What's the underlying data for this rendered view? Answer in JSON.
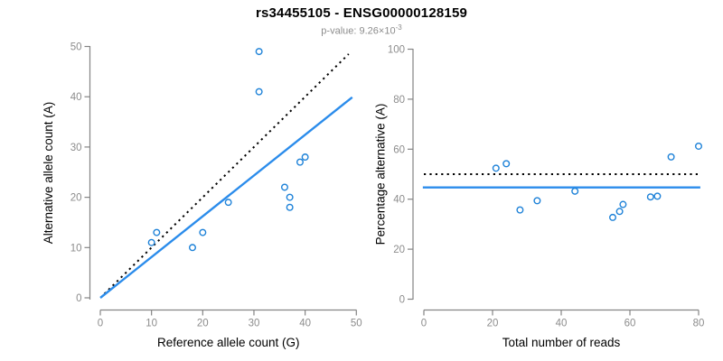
{
  "title": "rs34455105 - ENSG00000128159",
  "subtitle": {
    "label": "p-value:",
    "mantissa": "9.26×10",
    "exponent": "-3",
    "full_text": "p-value: 9.26×10^-3"
  },
  "colors": {
    "point": "#1e82d8",
    "fit_line": "#2b8ceb",
    "dotted_line": "#000000",
    "axis": "#848484",
    "tick_label": "#8c8c8c",
    "axis_title": "#000000",
    "subtitle_gray": "#8c8c8c"
  },
  "chart_data": [
    {
      "type": "scatter",
      "name": "ref-vs-alt-counts",
      "xlabel": "Reference allele count (G)",
      "ylabel": "Alternative allele count (A)",
      "xlim": [
        0,
        50
      ],
      "ylim": [
        0,
        50
      ],
      "xticks": [
        0,
        10,
        20,
        30,
        40,
        50
      ],
      "yticks": [
        0,
        10,
        20,
        30,
        40,
        50
      ],
      "grid": false,
      "points": [
        [
          10,
          11
        ],
        [
          11,
          13
        ],
        [
          18,
          10
        ],
        [
          20,
          13
        ],
        [
          25,
          19
        ],
        [
          31,
          41
        ],
        [
          31,
          49
        ],
        [
          36,
          22
        ],
        [
          37,
          18
        ],
        [
          37,
          20
        ],
        [
          39,
          27
        ],
        [
          40,
          28
        ]
      ],
      "lines": [
        {
          "label": "identity-line",
          "style": "dotted",
          "color": "#000000",
          "x1": 0.8,
          "y1": 0.8,
          "x2": 48.5,
          "y2": 48.5
        },
        {
          "label": "fit-line",
          "style": "solid",
          "color": "#2b8ceb",
          "x1": 0,
          "y1": 0,
          "x2": 49.2,
          "y2": 39.9
        }
      ]
    },
    {
      "type": "scatter",
      "name": "reads-vs-percentage",
      "xlabel": "Total number of reads",
      "ylabel": "Percentage alternative (A)",
      "xlim": [
        0,
        80
      ],
      "ylim": [
        0,
        100
      ],
      "xticks": [
        0,
        20,
        40,
        60,
        80
      ],
      "yticks": [
        0,
        20,
        40,
        60,
        80,
        100
      ],
      "grid": false,
      "points": [
        [
          21,
          52.4
        ],
        [
          24,
          54.2
        ],
        [
          28,
          35.7
        ],
        [
          33,
          39.4
        ],
        [
          44,
          43.2
        ],
        [
          55,
          32.7
        ],
        [
          57,
          35.1
        ],
        [
          58,
          37.9
        ],
        [
          66,
          40.9
        ],
        [
          68,
          41.2
        ],
        [
          72,
          56.9
        ],
        [
          80,
          61.2
        ]
      ],
      "lines": [
        {
          "label": "expected-line",
          "style": "dotted",
          "color": "#000000",
          "x1": 0,
          "y1": 50,
          "x2": 80,
          "y2": 50
        },
        {
          "label": "observed-line",
          "style": "solid",
          "color": "#2b8ceb",
          "x1": -0.3,
          "y1": 44.7,
          "x2": 80.5,
          "y2": 44.7
        }
      ]
    }
  ]
}
